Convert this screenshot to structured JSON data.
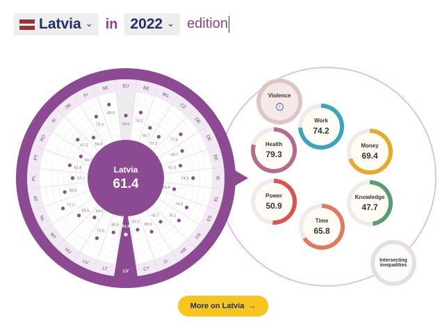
{
  "selector": {
    "country": "Latvia",
    "connector": "in",
    "year": "2022",
    "suffix": "edition"
  },
  "wheel": {
    "center_name": "Latvia",
    "center_score": "61.4",
    "countries": [
      {
        "code": "EU",
        "score": 68.6
      },
      {
        "code": "BE",
        "score": 74.2
      },
      {
        "code": "BG",
        "score": 60.7
      },
      {
        "code": "CZ",
        "score": 57.2
      },
      {
        "code": "DK",
        "score": 77.8
      },
      {
        "code": "DE",
        "score": 68.7
      },
      {
        "code": "EE",
        "score": 61.0
      },
      {
        "code": "IE",
        "score": 74.3
      },
      {
        "code": "EL",
        "score": 53.4
      },
      {
        "code": "ES",
        "score": 74.6
      },
      {
        "code": "FR",
        "score": 75.1
      },
      {
        "code": "HR",
        "score": 60.7
      },
      {
        "code": "IT",
        "score": 65.0
      },
      {
        "code": "CY",
        "score": 57.3
      },
      {
        "code": "LV",
        "score": 61.4
      },
      {
        "code": "LT",
        "score": 60.6
      },
      {
        "code": "LU",
        "score": 73.5
      },
      {
        "code": "HU",
        "score": 54.2
      },
      {
        "code": "MT",
        "score": 65.6
      },
      {
        "code": "NL",
        "score": 77.3
      },
      {
        "code": "AT",
        "score": 68.8
      },
      {
        "code": "PL",
        "score": 57.7
      },
      {
        "code": "PT",
        "score": 62.8
      },
      {
        "code": "RO",
        "score": 53.7
      },
      {
        "code": "SI",
        "score": 67.5
      },
      {
        "code": "SK",
        "score": 56.0
      },
      {
        "code": "FI",
        "score": 75.4
      },
      {
        "code": "SE",
        "score": 83.9
      }
    ]
  },
  "domains": [
    {
      "key": "violence",
      "name": "Violence",
      "value": "",
      "info_icon": "info-icon",
      "color": "#c9a9a6",
      "fill": 0
    },
    {
      "key": "work",
      "name": "Work",
      "value": "74.2",
      "color": "#3aa6b9",
      "fill": 0.742
    },
    {
      "key": "money",
      "name": "Money",
      "value": "69.4",
      "color": "#e9a72b",
      "fill": 0.694
    },
    {
      "key": "health",
      "name": "Health",
      "value": "79.3",
      "color": "#b46b8e",
      "fill": 0.793
    },
    {
      "key": "knowledge",
      "name": "Knowledge",
      "value": "47.7",
      "color": "#5a9e6f",
      "fill": 0.477
    },
    {
      "key": "power",
      "name": "Power",
      "value": "50.9",
      "color": "#d9534f",
      "fill": 0.509
    },
    {
      "key": "time",
      "name": "Time",
      "value": "65.8",
      "color": "#e07a5f",
      "fill": 0.658
    },
    {
      "key": "intersecting",
      "name": "Intersecting inequalities",
      "value": "",
      "color": "#cfcfcf",
      "fill": 0
    }
  ],
  "more_button": {
    "label": "More on Latvia",
    "icon": "arrow-right-icon"
  },
  "colors": {
    "accent": "#8b4a91",
    "accent_light": "#ead9ec",
    "button": "#f7c61e",
    "navy": "#1f2f6b"
  }
}
